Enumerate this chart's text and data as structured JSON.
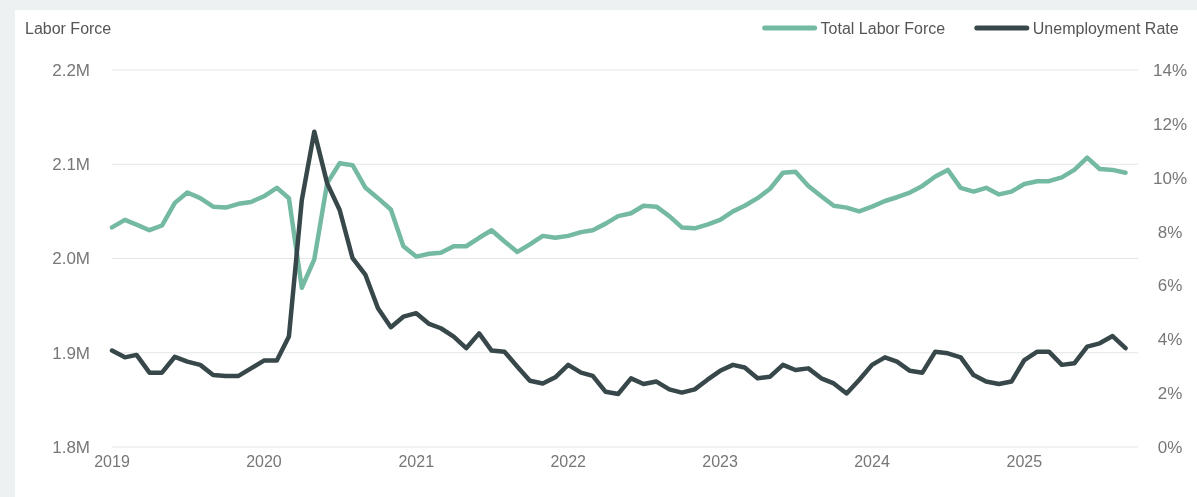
{
  "chart_data": {
    "type": "line",
    "ylabel": "Labor Force",
    "x": [
      "2019-01",
      "2019-02",
      "2019-03",
      "2019-04",
      "2019-05",
      "2019-06",
      "2019-07",
      "2019-08",
      "2019-09",
      "2019-10",
      "2019-11",
      "2019-12",
      "2020-01",
      "2020-02",
      "2020-03",
      "2020-04",
      "2020-05",
      "2020-06",
      "2020-07",
      "2020-08",
      "2020-09",
      "2020-10",
      "2020-11",
      "2020-12",
      "2021-01",
      "2021-02",
      "2021-03",
      "2021-04",
      "2021-05",
      "2021-06",
      "2021-07",
      "2021-08",
      "2021-09",
      "2021-10",
      "2021-11",
      "2021-12",
      "2022-01",
      "2022-02",
      "2022-03",
      "2022-04",
      "2022-05",
      "2022-06",
      "2022-07",
      "2022-08",
      "2022-09",
      "2022-10",
      "2022-11",
      "2022-12",
      "2023-01",
      "2023-02",
      "2023-03",
      "2023-04",
      "2023-05",
      "2023-06",
      "2023-07",
      "2023-08",
      "2023-09",
      "2023-10",
      "2023-11",
      "2023-12",
      "2024-01",
      "2024-02",
      "2024-03",
      "2024-04",
      "2024-05",
      "2024-06",
      "2024-07",
      "2024-08",
      "2024-09",
      "2024-10",
      "2024-11",
      "2024-12",
      "2025-01",
      "2025-02",
      "2025-03",
      "2025-04",
      "2025-05",
      "2025-06",
      "2025-07",
      "2025-08",
      "2025-09"
    ],
    "series": [
      {
        "name": "Total Labor Force",
        "color": "#74b9a2",
        "values": [
          2.033,
          2.041,
          2.036,
          2.03,
          2.035,
          2.059,
          2.07,
          2.064,
          2.055,
          2.054,
          2.058,
          2.06,
          2.066,
          2.075,
          2.064,
          1.969,
          1.999,
          2.08,
          2.101,
          2.099,
          2.075,
          2.064,
          2.052,
          2.013,
          2.002,
          2.005,
          2.006,
          2.013,
          2.013,
          2.022,
          2.03,
          2.018,
          2.007,
          2.015,
          2.024,
          2.022,
          2.024,
          2.028,
          2.03,
          2.037,
          2.045,
          2.048,
          2.056,
          2.055,
          2.045,
          2.033,
          2.032,
          2.036,
          2.041,
          2.05,
          2.056,
          2.064,
          2.074,
          2.091,
          2.092,
          2.077,
          2.066,
          2.056,
          2.054,
          2.05,
          2.055,
          2.061,
          2.065,
          2.07,
          2.077,
          2.087,
          2.094,
          2.075,
          2.071,
          2.075,
          2.068,
          2.071,
          2.079,
          2.082,
          2.082,
          2.086,
          2.094,
          2.107,
          2.095,
          2.094,
          2.091
        ]
      },
      {
        "name": "Unemployment Rate",
        "color": "#37474a",
        "axis": "y2",
        "values": [
          3.58,
          3.33,
          3.42,
          2.76,
          2.76,
          3.35,
          3.17,
          3.05,
          2.67,
          2.64,
          2.64,
          2.92,
          3.21,
          3.21,
          4.1,
          9.17,
          11.71,
          9.79,
          8.8,
          7.01,
          6.39,
          5.15,
          4.45,
          4.84,
          4.97,
          4.57,
          4.41,
          4.1,
          3.67,
          4.22,
          3.58,
          3.54,
          2.98,
          2.46,
          2.36,
          2.59,
          3.05,
          2.76,
          2.64,
          2.05,
          1.97,
          2.55,
          2.34,
          2.43,
          2.14,
          2.02,
          2.14,
          2.49,
          2.83,
          3.05,
          2.95,
          2.55,
          2.61,
          3.05,
          2.86,
          2.92,
          2.55,
          2.36,
          1.99,
          2.49,
          3.05,
          3.33,
          3.17,
          2.83,
          2.76,
          3.54,
          3.48,
          3.33,
          2.67,
          2.43,
          2.34,
          2.43,
          3.23,
          3.54,
          3.54,
          3.05,
          3.11,
          3.73,
          3.85,
          4.12,
          3.67
        ]
      }
    ],
    "xlim": [
      "2019-01",
      "2025-10"
    ],
    "xticks": [
      "2019",
      "2020",
      "2021",
      "2022",
      "2023",
      "2024",
      "2025"
    ],
    "ylim": [
      1.8,
      2.2
    ],
    "yticks": [
      {
        "value": 1.8,
        "label": "1.8M"
      },
      {
        "value": 1.9,
        "label": "1.9M"
      },
      {
        "value": 2.0,
        "label": "2.0M"
      },
      {
        "value": 2.1,
        "label": "2.1M"
      },
      {
        "value": 2.2,
        "label": "2.2M"
      }
    ],
    "y2lim": [
      0,
      14
    ],
    "y2ticks": [
      {
        "value": 0,
        "label": "0%"
      },
      {
        "value": 2,
        "label": "2%"
      },
      {
        "value": 4,
        "label": "4%"
      },
      {
        "value": 6,
        "label": "6%"
      },
      {
        "value": 8,
        "label": "8%"
      },
      {
        "value": 10,
        "label": "10%"
      },
      {
        "value": 12,
        "label": "12%"
      },
      {
        "value": 14,
        "label": "14%"
      }
    ],
    "grid": "y",
    "legend": "top right"
  }
}
